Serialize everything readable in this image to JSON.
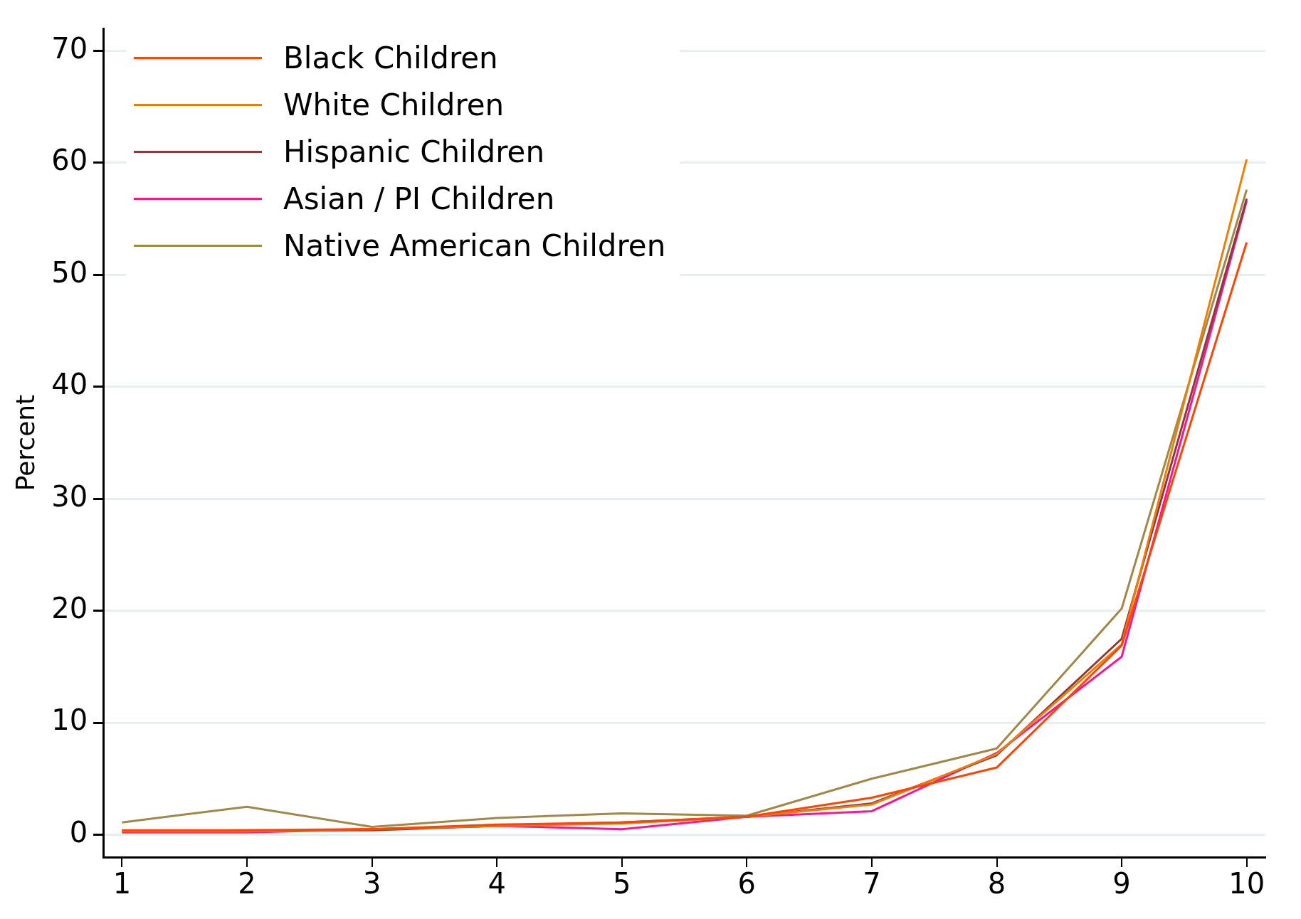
{
  "chart_data": {
    "type": "line",
    "ylabel": "Percent",
    "x": [
      1,
      2,
      3,
      4,
      5,
      6,
      7,
      8,
      9,
      10
    ],
    "xlim": [
      0.85,
      10.15
    ],
    "xticks": [
      1,
      2,
      3,
      4,
      5,
      6,
      7,
      8,
      9,
      10
    ],
    "ylim": [
      -2,
      72
    ],
    "yticks": [
      0,
      10,
      20,
      30,
      40,
      50,
      60,
      70
    ],
    "grid": "y",
    "legend": "top left",
    "marker": "none",
    "line_style": "solid",
    "series": [
      {
        "name": "Black Children",
        "color": "#ff4500",
        "values": [
          0.4,
          0.4,
          0.5,
          0.9,
          1.1,
          1.6,
          3.3,
          6.0,
          16.9,
          52.9
        ]
      },
      {
        "name": "White Children",
        "color": "#e8800a",
        "values": [
          0.3,
          0.3,
          0.5,
          0.8,
          1.0,
          1.6,
          2.7,
          7.2,
          17.0,
          60.3
        ]
      },
      {
        "name": "Hispanic Children",
        "color": "#8b3a3a",
        "values": [
          0.3,
          0.4,
          0.4,
          0.8,
          1.1,
          1.6,
          2.8,
          7.1,
          17.5,
          56.8
        ]
      },
      {
        "name": "Asian / PI Children",
        "color": "#ff1493",
        "values": [
          0.2,
          0.2,
          0.5,
          0.8,
          0.5,
          1.6,
          2.1,
          7.3,
          15.9,
          56.6
        ]
      },
      {
        "name": "Native American Children",
        "color": "#a0884a",
        "values": [
          1.1,
          2.5,
          0.7,
          1.5,
          1.9,
          1.7,
          5.0,
          7.7,
          20.2,
          57.6
        ]
      }
    ]
  }
}
